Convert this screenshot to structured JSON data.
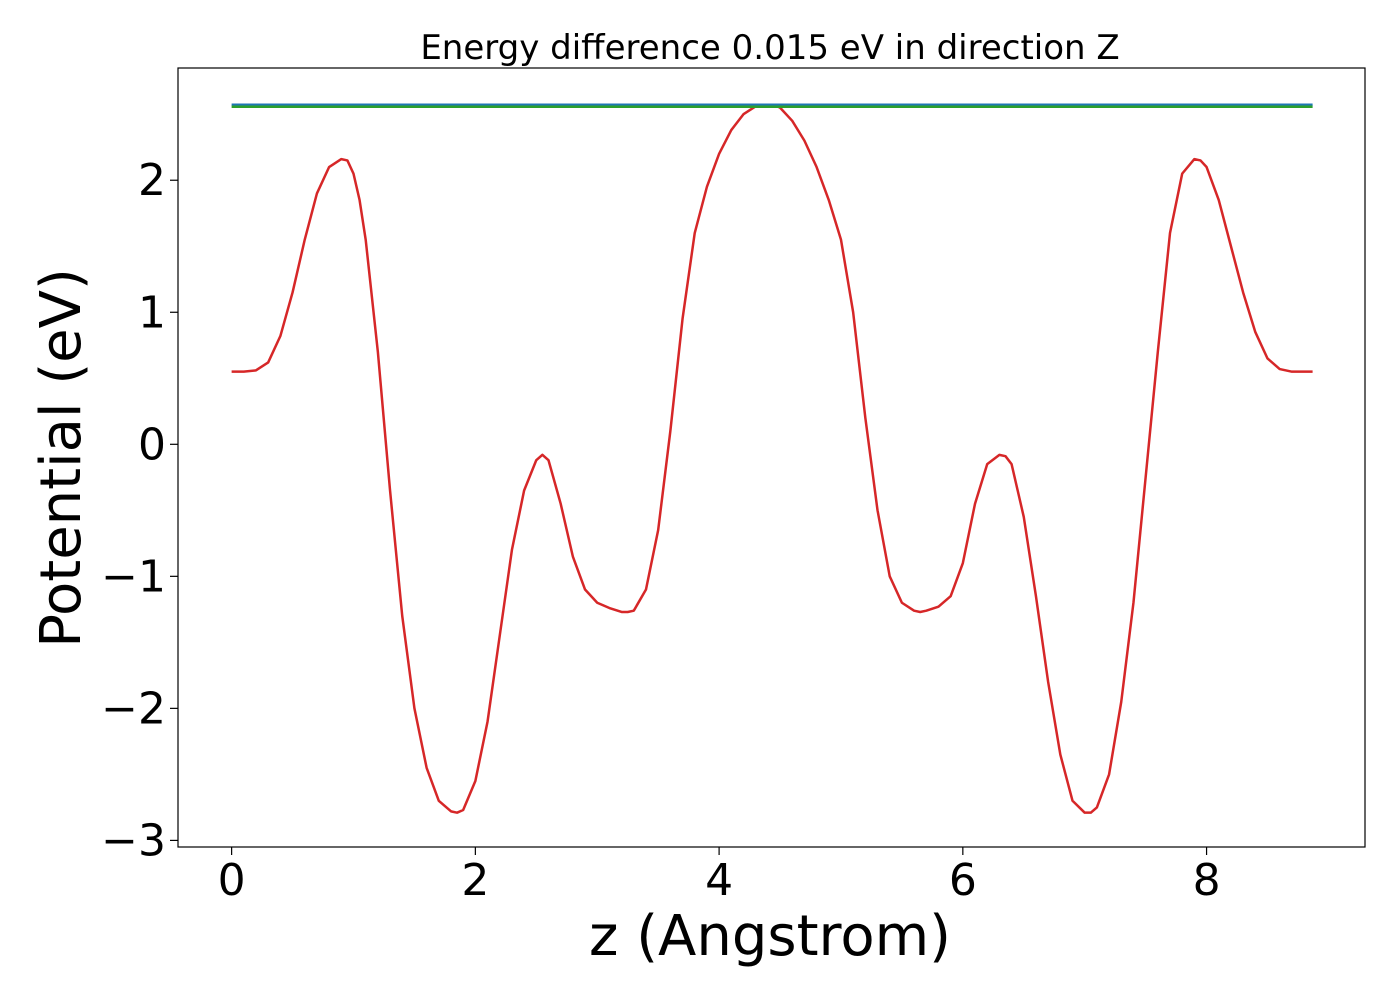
{
  "chart_data": {
    "type": "line",
    "title": "Energy difference 0.015 eV in direction Z",
    "xlabel": "z (Angstrom)",
    "ylabel": "Potential (eV)",
    "xlim": [
      -0.44,
      9.3
    ],
    "ylim": [
      -3.05,
      2.85
    ],
    "xticks": [
      0,
      2,
      4,
      6,
      8
    ],
    "xtick_labels": [
      "0",
      "2",
      "4",
      "6",
      "8"
    ],
    "yticks": [
      -3,
      -2,
      -1,
      0,
      1,
      2
    ],
    "ytick_labels": [
      "−3",
      "−2",
      "−1",
      "0",
      "1",
      "2"
    ],
    "grid": false,
    "series": [
      {
        "color": "#d62728",
        "x": [
          0,
          0.1,
          0.2,
          0.3,
          0.4,
          0.5,
          0.6,
          0.7,
          0.8,
          0.9,
          0.95,
          1.0,
          1.05,
          1.1,
          1.2,
          1.3,
          1.4,
          1.5,
          1.6,
          1.7,
          1.8,
          1.85,
          1.9,
          2.0,
          2.1,
          2.2,
          2.3,
          2.4,
          2.5,
          2.55,
          2.6,
          2.7,
          2.8,
          2.9,
          3.0,
          3.1,
          3.2,
          3.25,
          3.3,
          3.4,
          3.5,
          3.6,
          3.7,
          3.8,
          3.9,
          4.0,
          4.1,
          4.2,
          4.3,
          4.4,
          4.45,
          4.5,
          4.6,
          4.7,
          4.8,
          4.9,
          5.0,
          5.1,
          5.2,
          5.3,
          5.4,
          5.5,
          5.6,
          5.65,
          5.7,
          5.8,
          5.9,
          6.0,
          6.1,
          6.2,
          6.3,
          6.35,
          6.4,
          6.5,
          6.6,
          6.7,
          6.8,
          6.9,
          7.0,
          7.05,
          7.1,
          7.2,
          7.3,
          7.4,
          7.5,
          7.6,
          7.7,
          7.8,
          7.9,
          7.95,
          8.0,
          8.1,
          8.2,
          8.3,
          8.4,
          8.5,
          8.6,
          8.7,
          8.8,
          8.87
        ],
        "y": [
          0.55,
          0.55,
          0.56,
          0.62,
          0.82,
          1.15,
          1.55,
          1.9,
          2.1,
          2.16,
          2.15,
          2.05,
          1.85,
          1.55,
          0.7,
          -0.35,
          -1.3,
          -2.0,
          -2.45,
          -2.7,
          -2.78,
          -2.79,
          -2.77,
          -2.55,
          -2.1,
          -1.45,
          -0.8,
          -0.35,
          -0.12,
          -0.08,
          -0.12,
          -0.45,
          -0.85,
          -1.1,
          -1.2,
          -1.24,
          -1.27,
          -1.27,
          -1.26,
          -1.1,
          -0.65,
          0.1,
          0.95,
          1.6,
          1.95,
          2.2,
          2.38,
          2.5,
          2.56,
          2.57,
          2.57,
          2.55,
          2.45,
          2.3,
          2.1,
          1.85,
          1.55,
          1.0,
          0.2,
          -0.5,
          -1.0,
          -1.2,
          -1.26,
          -1.27,
          -1.26,
          -1.23,
          -1.15,
          -0.9,
          -0.45,
          -0.15,
          -0.08,
          -0.09,
          -0.15,
          -0.55,
          -1.15,
          -1.8,
          -2.35,
          -2.7,
          -2.79,
          -2.79,
          -2.75,
          -2.5,
          -1.95,
          -1.2,
          -0.25,
          0.7,
          1.6,
          2.05,
          2.16,
          2.15,
          2.1,
          1.85,
          1.5,
          1.15,
          0.85,
          0.65,
          0.57,
          0.55,
          0.55,
          0.55
        ]
      },
      {
        "color": "#1f77b4",
        "x": [
          0,
          8.87
        ],
        "y": [
          2.572,
          2.572
        ]
      },
      {
        "color": "#2ca02c",
        "x": [
          0,
          8.87
        ],
        "y": [
          2.557,
          2.557
        ]
      }
    ]
  }
}
